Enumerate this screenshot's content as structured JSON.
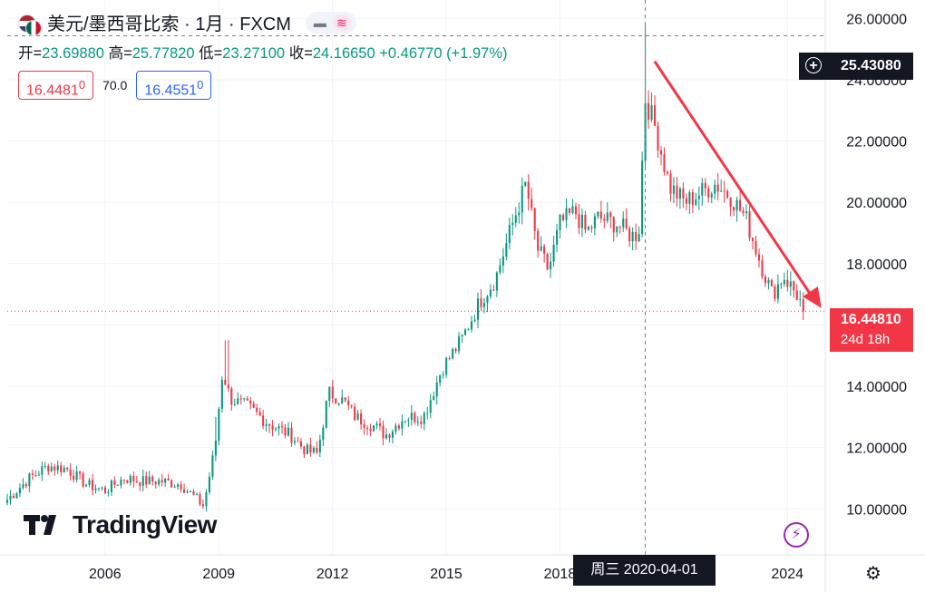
{
  "header": {
    "title": "美元/墨西哥比索 · 1月 · FXCM",
    "ohlc": {
      "open_label": "开=",
      "open": "23.69880",
      "high_label": "高=",
      "high": "25.77820",
      "low_label": "低=",
      "low": "23.27100",
      "close_label": "收=",
      "close": "24.16650",
      "change": "+0.46770 (+1.97%)"
    },
    "sell_price": "16.4481",
    "sell_price_sup": "0",
    "spread": "70.0",
    "buy_price": "16.4551",
    "buy_price_sup": "0"
  },
  "crosshair": {
    "date_label": "周三 2020-04-01",
    "price_label": "25.43080"
  },
  "last_price": {
    "price": "16.44810",
    "countdown": "24d 18h"
  },
  "logo": {
    "text": "TradingView"
  },
  "icons": {
    "symbol": "usd-mxn-flag-icon",
    "compare": "minus-icon",
    "indicator": "wave-icon",
    "replay": "bolt-icon",
    "settings": "gear-icon"
  },
  "colors": {
    "up": "#089981",
    "down": "#f23645",
    "crosshair": "#131722",
    "trendline": "#f23645"
  },
  "chart_data": {
    "type": "candlestick",
    "interval": "1M",
    "x_ticks": [
      "2006",
      "2009",
      "2012",
      "2015",
      "2018",
      "2024"
    ],
    "y_ticks": [
      "10.00000",
      "12.00000",
      "14.00000",
      "16.00000",
      "18.00000",
      "20.00000",
      "22.00000",
      "24.00000",
      "26.00000"
    ],
    "ylim": [
      8.5,
      26.6
    ],
    "xlim": [
      2003.42,
      2025.0
    ],
    "start": 2003.42,
    "anchors": [
      [
        2003.42,
        10.3
      ],
      [
        2004.0,
        11.0
      ],
      [
        2004.5,
        11.4
      ],
      [
        2005.0,
        11.3
      ],
      [
        2005.5,
        10.8
      ],
      [
        2006.0,
        10.6
      ],
      [
        2006.5,
        11.0
      ],
      [
        2007.0,
        10.9
      ],
      [
        2007.5,
        10.9
      ],
      [
        2008.0,
        10.8
      ],
      [
        2008.6,
        10.1
      ],
      [
        2008.9,
        12.0
      ],
      [
        2009.1,
        14.5
      ],
      [
        2009.3,
        13.6
      ],
      [
        2009.8,
        13.3
      ],
      [
        2010.3,
        12.8
      ],
      [
        2010.9,
        12.4
      ],
      [
        2011.3,
        11.9
      ],
      [
        2011.6,
        11.8
      ],
      [
        2011.9,
        13.8
      ],
      [
        2012.3,
        13.5
      ],
      [
        2012.6,
        13.0
      ],
      [
        2013.1,
        12.7
      ],
      [
        2013.4,
        12.4
      ],
      [
        2013.9,
        13.0
      ],
      [
        2014.4,
        13.0
      ],
      [
        2014.9,
        14.6
      ],
      [
        2015.4,
        15.5
      ],
      [
        2015.9,
        16.8
      ],
      [
        2016.3,
        17.5
      ],
      [
        2016.8,
        19.5
      ],
      [
        2017.1,
        20.6
      ],
      [
        2017.4,
        18.5
      ],
      [
        2017.7,
        17.8
      ],
      [
        2018.0,
        19.3
      ],
      [
        2018.4,
        19.7
      ],
      [
        2018.7,
        19.0
      ],
      [
        2019.0,
        19.5
      ],
      [
        2019.5,
        19.3
      ],
      [
        2019.9,
        18.9
      ],
      [
        2020.08,
        19.0
      ],
      [
        2020.25,
        23.4
      ],
      [
        2020.5,
        22.5
      ],
      [
        2020.9,
        20.5
      ],
      [
        2021.3,
        20.0
      ],
      [
        2021.7,
        20.3
      ],
      [
        2022.1,
        20.6
      ],
      [
        2022.5,
        20.2
      ],
      [
        2022.9,
        19.5
      ],
      [
        2023.3,
        18.0
      ],
      [
        2023.6,
        17.0
      ],
      [
        2023.9,
        17.6
      ],
      [
        2024.3,
        16.9
      ],
      [
        2024.42,
        16.45
      ]
    ],
    "crosshair_date": "2020-04-01",
    "crosshair_price": 25.4308,
    "last_close": 16.4481,
    "trendline": {
      "from": [
        2020.5,
        24.6
      ],
      "to": [
        2024.9,
        16.55
      ]
    }
  }
}
